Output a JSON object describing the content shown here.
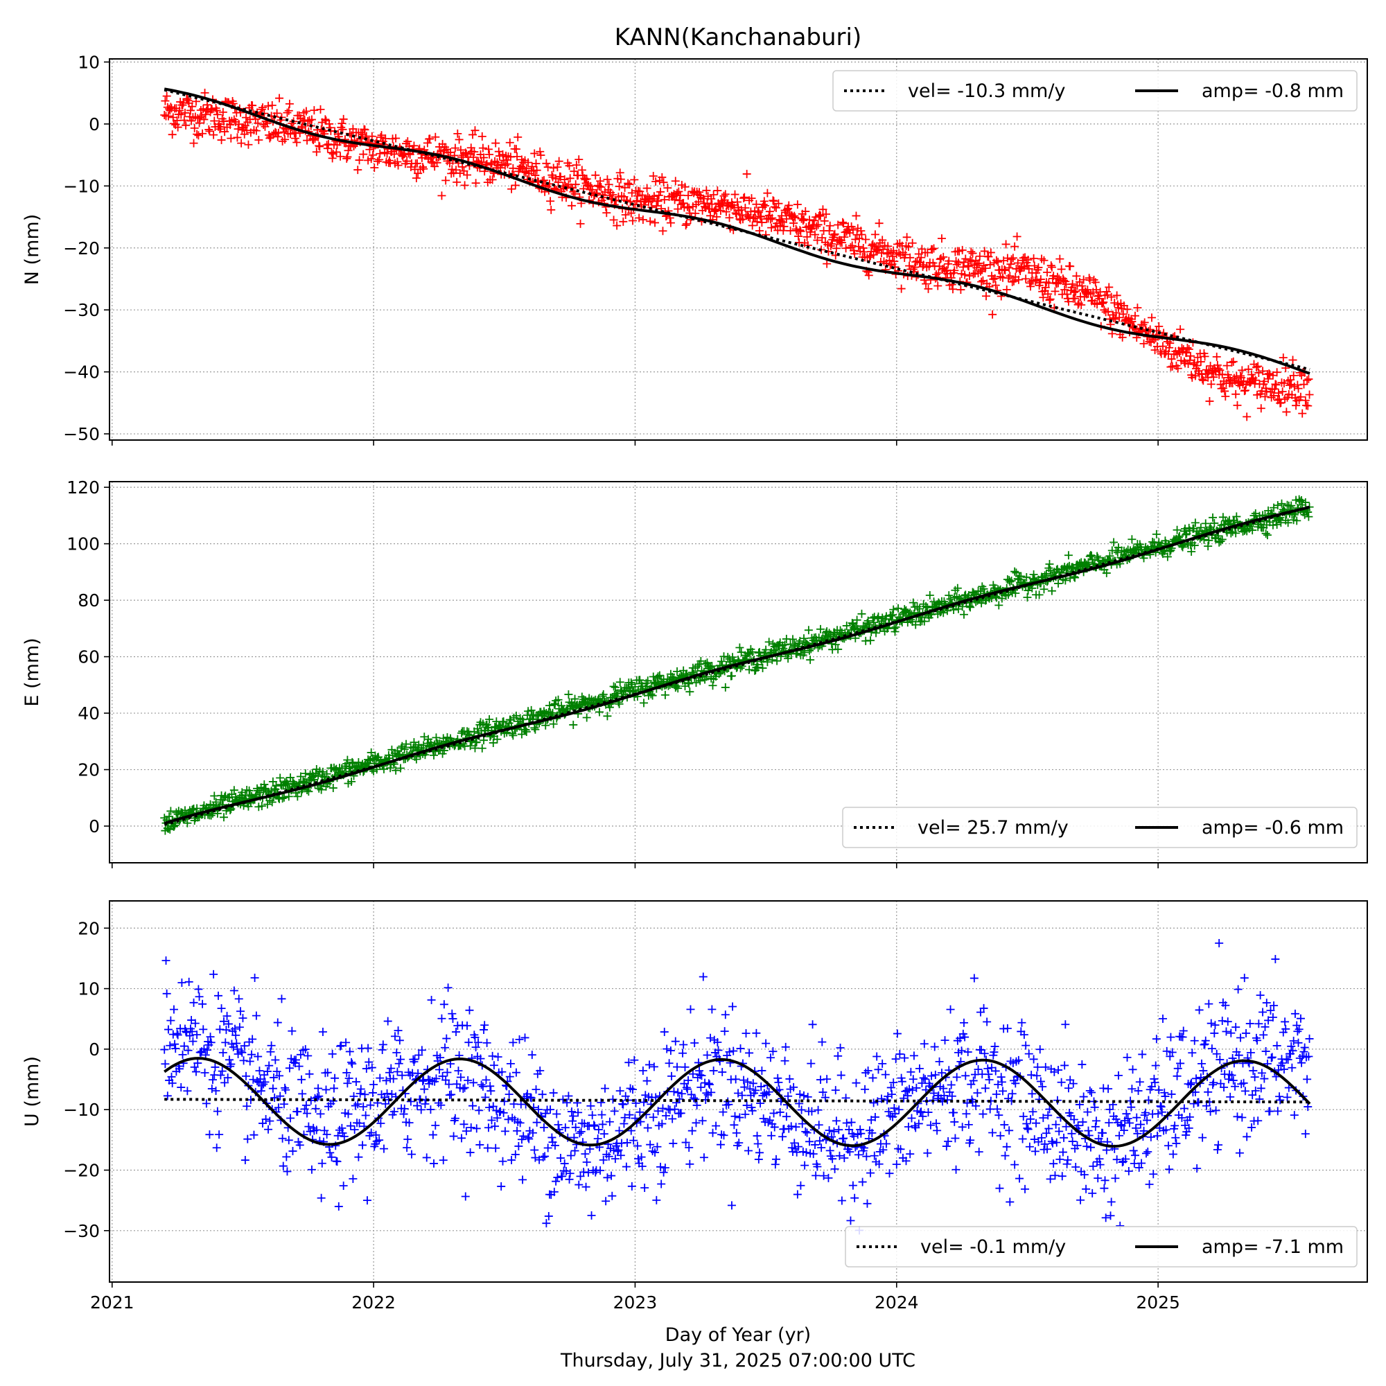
{
  "figure": {
    "title": "KANN(Kanchanaburi)",
    "xlabel": "Day of Year (yr)",
    "footer": "Thursday, July 31, 2025 07:00:00 UTC"
  },
  "chart_data": [
    {
      "type": "scatter",
      "panel": "N",
      "ylabel": "N (mm)",
      "xlim": [
        2020.99,
        2025.8
      ],
      "ylim": [
        -51,
        10.5
      ],
      "yticks": [
        10,
        0,
        -10,
        -20,
        -30,
        -40,
        -50
      ],
      "xticks": [
        2021,
        2022,
        2023,
        2024,
        2025
      ],
      "grid": true,
      "legend_position": "top-right",
      "point_color": "#ff0000",
      "marker": "+",
      "x_start": 2021.2,
      "x_end": 2025.58,
      "series": [
        {
          "name": "vel= -10.3 mm/y",
          "style": "dotted",
          "color": "#000000",
          "fit": {
            "intercept_at_start": 5.5,
            "velocity_mm_per_yr": -10.3
          }
        },
        {
          "name": "amp= -0.8 mm",
          "style": "solid",
          "color": "#000000",
          "fit": {
            "intercept_at_start": 5.0,
            "velocity_mm_per_yr": -10.3,
            "amplitude_mm": -0.8
          }
        }
      ],
      "observations": {
        "approx_trend_points": [
          {
            "x": 2021.25,
            "y": 2.0
          },
          {
            "x": 2021.75,
            "y": -1.0
          },
          {
            "x": 2022.0,
            "y": -4.0
          },
          {
            "x": 2022.5,
            "y": -6.5
          },
          {
            "x": 2023.0,
            "y": -12.5
          },
          {
            "x": 2023.35,
            "y": -13.0
          },
          {
            "x": 2023.75,
            "y": -18.0
          },
          {
            "x": 2024.1,
            "y": -22.5
          },
          {
            "x": 2024.5,
            "y": -24.0
          },
          {
            "x": 2024.75,
            "y": -28.0
          },
          {
            "x": 2025.0,
            "y": -35.0
          },
          {
            "x": 2025.3,
            "y": -42.0
          },
          {
            "x": 2025.58,
            "y": -42.0
          }
        ],
        "scatter_mm": 1.8
      }
    },
    {
      "type": "scatter",
      "panel": "E",
      "ylabel": "E (mm)",
      "xlim": [
        2020.99,
        2025.8
      ],
      "ylim": [
        -13,
        122
      ],
      "yticks": [
        120,
        100,
        80,
        60,
        40,
        20,
        0
      ],
      "xticks": [
        2021,
        2022,
        2023,
        2024,
        2025
      ],
      "grid": true,
      "legend_position": "bottom-right",
      "point_color": "#008000",
      "marker": "+",
      "x_start": 2021.2,
      "x_end": 2025.58,
      "series": [
        {
          "name": "vel= 25.7 mm/y",
          "style": "dotted",
          "color": "#000000",
          "fit": {
            "intercept_at_start": 0.5,
            "velocity_mm_per_yr": 25.7
          }
        },
        {
          "name": "amp= -0.6 mm",
          "style": "solid",
          "color": "#000000",
          "fit": {
            "intercept_at_start": 0.5,
            "velocity_mm_per_yr": 25.7,
            "amplitude_mm": -0.6
          }
        }
      ],
      "observations": {
        "approx_trend_points": [
          {
            "x": 2021.2,
            "y": 1.0
          },
          {
            "x": 2022.0,
            "y": 22.0
          },
          {
            "x": 2023.0,
            "y": 48.0
          },
          {
            "x": 2024.0,
            "y": 73.0
          },
          {
            "x": 2025.0,
            "y": 99.0
          },
          {
            "x": 2025.58,
            "y": 113.0
          }
        ],
        "scatter_mm": 2.0
      }
    },
    {
      "type": "scatter",
      "panel": "U",
      "ylabel": "U (mm)",
      "xlim": [
        2020.99,
        2025.8
      ],
      "ylim": [
        -38.5,
        24.5
      ],
      "yticks": [
        20,
        10,
        0,
        -10,
        -20,
        -30
      ],
      "xticks": [
        2021,
        2022,
        2023,
        2024,
        2025
      ],
      "xtick_labels": [
        "2021",
        "2022",
        "2023",
        "2024",
        "2025"
      ],
      "grid": true,
      "legend_position": "bottom-right",
      "point_color": "#0000ff",
      "marker": "+",
      "x_start": 2021.2,
      "x_end": 2025.58,
      "series": [
        {
          "name": "vel= -0.1 mm/y",
          "style": "dotted",
          "color": "#000000",
          "fit": {
            "intercept_at_start": -8.3,
            "velocity_mm_per_yr": -0.1
          }
        },
        {
          "name": "amp= -7.1 mm",
          "style": "solid",
          "color": "#000000",
          "fit": {
            "intercept_at_start": -8.6,
            "velocity_mm_per_yr": -0.1,
            "amplitude_mm": -7.1,
            "peak_year_fraction": 0.33
          }
        }
      ],
      "observations": {
        "approx_trend_points": [
          {
            "x": 2021.3,
            "y": 2.0
          },
          {
            "x": 2021.8,
            "y": -13.0
          },
          {
            "x": 2022.3,
            "y": -3.0
          },
          {
            "x": 2022.8,
            "y": -17.0
          },
          {
            "x": 2023.3,
            "y": -4.0
          },
          {
            "x": 2023.8,
            "y": -15.0
          },
          {
            "x": 2024.3,
            "y": -4.0
          },
          {
            "x": 2024.8,
            "y": -16.0
          },
          {
            "x": 2025.3,
            "y": -2.0
          }
        ],
        "scatter_mm": 6.0
      }
    }
  ]
}
